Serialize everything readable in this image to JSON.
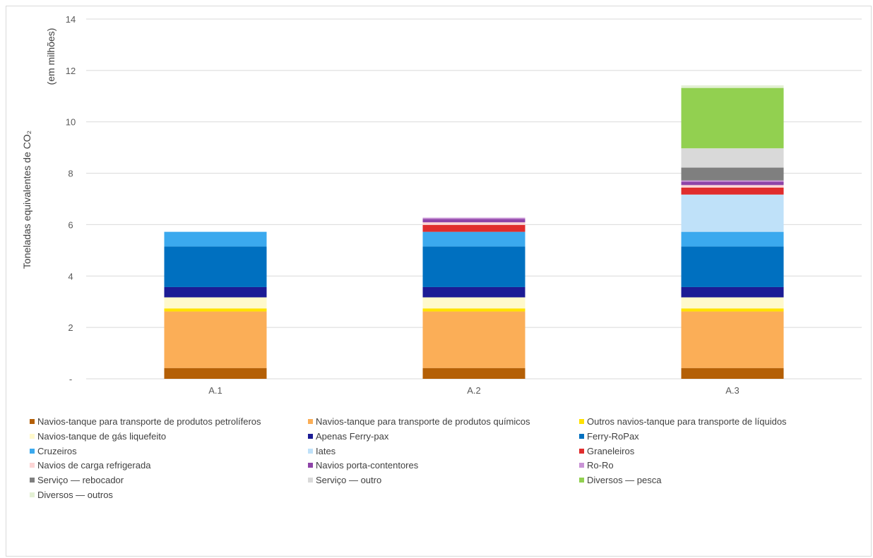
{
  "chart_data": {
    "type": "bar",
    "stacked": true,
    "title": "",
    "xlabel": "",
    "ylabel": "Toneladas equivalentes de CO₂",
    "ylabel_unit": "(em milhões)",
    "ylim": [
      0,
      14
    ],
    "yticks": [
      0,
      2,
      4,
      6,
      8,
      10,
      12,
      14
    ],
    "ytick_labels": [
      "-",
      "2",
      "4",
      "6",
      "8",
      "10",
      "12",
      "14"
    ],
    "grid": true,
    "legend_position": "bottom",
    "categories": [
      "A.1",
      "A.2",
      "A.3"
    ],
    "series": [
      {
        "name": "Navios-tanque para transporte de produtos petrolíferos",
        "color": "#b45f06",
        "values": [
          0.42,
          0.42,
          0.42
        ]
      },
      {
        "name": "Navios-tanque para transporte de produtos químicos",
        "color": "#fbae57",
        "values": [
          2.2,
          2.2,
          2.2
        ]
      },
      {
        "name": "Outros navios-tanque para transporte de líquidos",
        "color": "#ffe100",
        "values": [
          0.12,
          0.12,
          0.12
        ]
      },
      {
        "name": "Navios-tanque de gás liquefeito",
        "color": "#fff9cc",
        "values": [
          0.43,
          0.43,
          0.43
        ]
      },
      {
        "name": "Apenas Ferry-pax",
        "color": "#1c1c95",
        "values": [
          0.4,
          0.4,
          0.4
        ]
      },
      {
        "name": "Ferry-RoPax",
        "color": "#0070c0",
        "values": [
          1.58,
          1.58,
          1.58
        ]
      },
      {
        "name": "Cruzeiros",
        "color": "#3ba9ee",
        "values": [
          0.57,
          0.57,
          0.57
        ]
      },
      {
        "name": "Iates",
        "color": "#bfe1f9",
        "values": [
          0,
          0,
          1.45
        ]
      },
      {
        "name": "Graneleiros",
        "color": "#e02d2d",
        "values": [
          0,
          0.27,
          0.27
        ]
      },
      {
        "name": "Navios de carga refrigerada",
        "color": "#fcd5d5",
        "values": [
          0,
          0.1,
          0.1
        ]
      },
      {
        "name": "Navios porta-contentores",
        "color": "#8e44a8",
        "values": [
          0,
          0.13,
          0.13
        ]
      },
      {
        "name": "Ro-Ro",
        "color": "#c993d6",
        "values": [
          0,
          0.05,
          0.05
        ]
      },
      {
        "name": "Serviço — rebocador",
        "color": "#7f7f7f",
        "values": [
          0,
          0,
          0.5
        ]
      },
      {
        "name": "Serviço — outro",
        "color": "#d9d9d9",
        "values": [
          0,
          0,
          0.75
        ]
      },
      {
        "name": "Diversos — pesca",
        "color": "#92d050",
        "values": [
          0,
          0,
          2.35
        ]
      },
      {
        "name": "Diversos — outros",
        "color": "#e3f0d4",
        "values": [
          0,
          0,
          0.1
        ]
      }
    ]
  }
}
